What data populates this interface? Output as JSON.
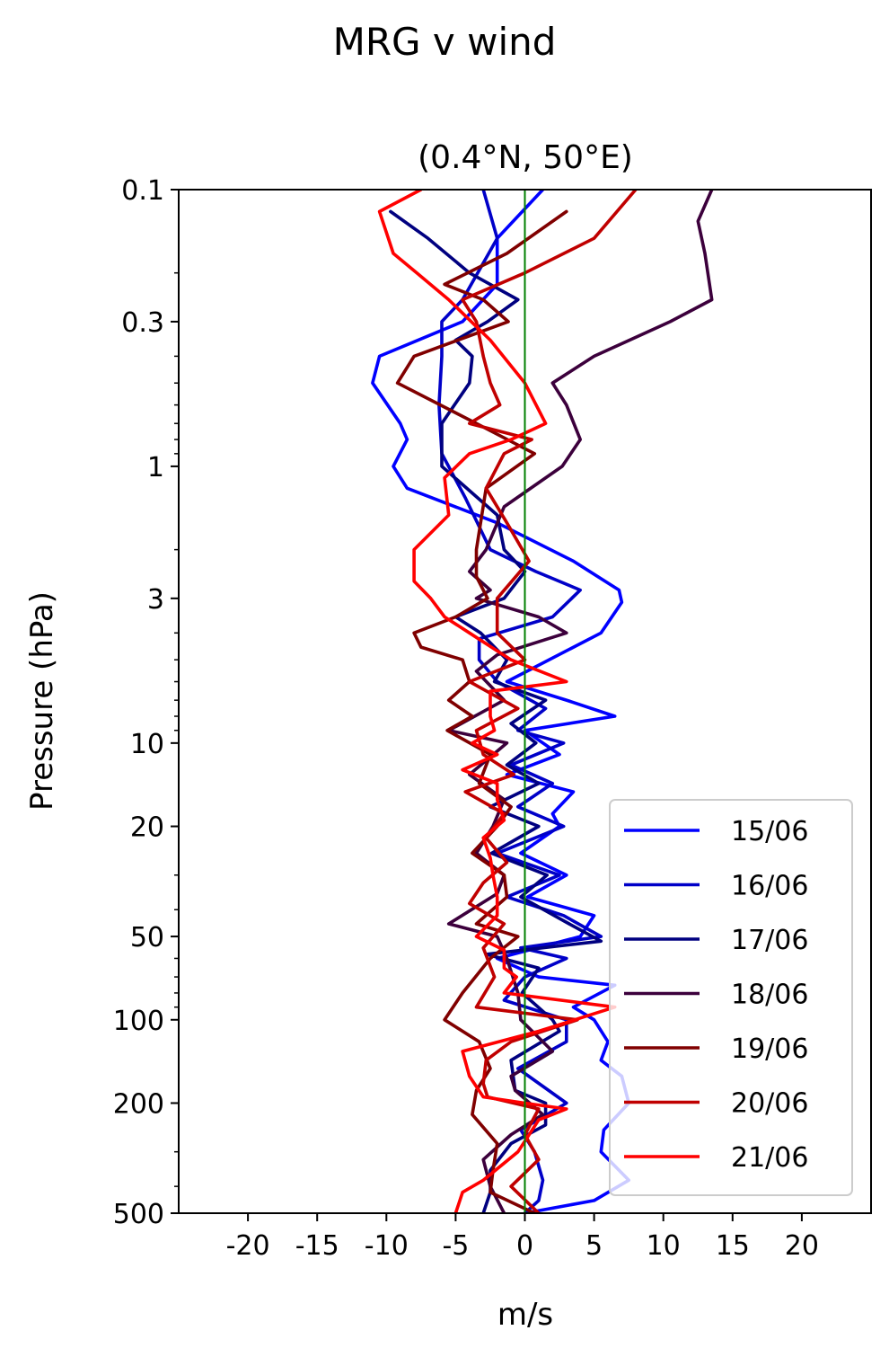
{
  "figure_title": "MRG v wind",
  "chart_data": {
    "type": "line",
    "title": "(0.4°N, 50°E)",
    "xlabel": "m/s",
    "ylabel": "Pressure (hPa)",
    "xlim": [
      -25,
      25
    ],
    "ylim": [
      500,
      0.1
    ],
    "y_scale": "log",
    "x_ticks": [
      -20,
      -15,
      -10,
      -5,
      0,
      5,
      10,
      15,
      20
    ],
    "x_tick_labels": [
      "-20",
      "-15",
      "-10",
      "-5",
      "0",
      "5",
      "10",
      "15",
      "20"
    ],
    "y_ticks": [
      0.1,
      0.3,
      1,
      3,
      10,
      20,
      50,
      100,
      200,
      500
    ],
    "y_tick_labels": [
      "0.1",
      "0.3",
      "1",
      "3",
      "10",
      "20",
      "50",
      "100",
      "200",
      "500"
    ],
    "reference_line": {
      "x": 0,
      "color": "#008000"
    },
    "legend": {
      "placement": "bottom-right"
    },
    "series": [
      {
        "name": "15/06",
        "color": "#0000ff",
        "points": [
          [
            1.3,
            0.1
          ],
          [
            -2,
            0.15
          ],
          [
            -2,
            0.22
          ],
          [
            -4.5,
            0.3
          ],
          [
            -10.5,
            0.4
          ],
          [
            -11,
            0.5
          ],
          [
            -9,
            0.7
          ],
          [
            -8.5,
            0.8
          ],
          [
            -9.5,
            1
          ],
          [
            -8.5,
            1.2
          ],
          [
            -2,
            1.6
          ],
          [
            3.5,
            2.2
          ],
          [
            6.8,
            2.8
          ],
          [
            7,
            3.1
          ],
          [
            5.5,
            4
          ],
          [
            -1.3,
            6
          ],
          [
            3,
            7
          ],
          [
            6.5,
            8
          ],
          [
            0,
            9
          ],
          [
            2.5,
            11
          ],
          [
            -1.3,
            13
          ],
          [
            3.5,
            15
          ],
          [
            2,
            18
          ],
          [
            2.5,
            20
          ],
          [
            -0.3,
            25
          ],
          [
            3,
            30
          ],
          [
            0.2,
            36
          ],
          [
            5,
            42
          ],
          [
            4,
            50
          ],
          [
            -2,
            60
          ],
          [
            1,
            70
          ],
          [
            6.5,
            75
          ],
          [
            3.5,
            90
          ],
          [
            5,
            100
          ],
          [
            6,
            120
          ],
          [
            5.5,
            140
          ],
          [
            7,
            160
          ],
          [
            7.5,
            200
          ],
          [
            5.7,
            250
          ],
          [
            5.5,
            300
          ],
          [
            7.5,
            380
          ],
          [
            5,
            450
          ],
          [
            0,
            500
          ]
        ]
      },
      {
        "name": "16/06",
        "color": "#0000c8",
        "points": [
          [
            -3,
            0.1
          ],
          [
            -2,
            0.15
          ],
          [
            -4.5,
            0.25
          ],
          [
            -6,
            0.3
          ],
          [
            -6,
            0.4
          ],
          [
            -6.2,
            0.6
          ],
          [
            -6,
            0.9
          ],
          [
            -4.3,
            1.3
          ],
          [
            -2.5,
            2
          ],
          [
            0.8,
            2.4
          ],
          [
            4,
            2.8
          ],
          [
            2,
            3.5
          ],
          [
            -3.3,
            4.2
          ],
          [
            -3.3,
            5
          ],
          [
            -2,
            6
          ],
          [
            1.5,
            7.5
          ],
          [
            -0.5,
            9
          ],
          [
            2.8,
            10
          ],
          [
            -1,
            12
          ],
          [
            2,
            14
          ],
          [
            -0.5,
            17
          ],
          [
            2.8,
            20
          ],
          [
            -2,
            25
          ],
          [
            2.5,
            30
          ],
          [
            -1.3,
            36
          ],
          [
            2.8,
            42
          ],
          [
            5.5,
            50
          ],
          [
            -0.3,
            55
          ],
          [
            3,
            60
          ],
          [
            0,
            70
          ],
          [
            -1.5,
            85
          ],
          [
            3,
            100
          ],
          [
            3,
            120
          ],
          [
            -0.5,
            150
          ],
          [
            3,
            200
          ],
          [
            -0.3,
            250
          ],
          [
            0.7,
            300
          ],
          [
            1.3,
            380
          ],
          [
            1,
            450
          ],
          [
            0,
            500
          ]
        ]
      },
      {
        "name": "17/06",
        "color": "#000080",
        "points": [
          [
            -9.7,
            0.12
          ],
          [
            -7,
            0.15
          ],
          [
            -4,
            0.2
          ],
          [
            -0.5,
            0.25
          ],
          [
            -2.7,
            0.3
          ],
          [
            -5,
            0.35
          ],
          [
            -3.8,
            0.4
          ],
          [
            -4,
            0.5
          ],
          [
            -6,
            0.7
          ],
          [
            -6,
            1
          ],
          [
            -2,
            1.5
          ],
          [
            -1.5,
            2
          ],
          [
            0,
            2.4
          ],
          [
            -1.5,
            3
          ],
          [
            -5,
            3.5
          ],
          [
            -3.2,
            4
          ],
          [
            -1.3,
            5
          ],
          [
            -2.2,
            6
          ],
          [
            1.5,
            7
          ],
          [
            -1,
            8.5
          ],
          [
            0.8,
            10
          ],
          [
            -1.3,
            12
          ],
          [
            1,
            14
          ],
          [
            -2.5,
            17
          ],
          [
            1,
            20
          ],
          [
            -2.4,
            25
          ],
          [
            1.6,
            30
          ],
          [
            -0.3,
            36
          ],
          [
            3.2,
            45
          ],
          [
            5.5,
            52
          ],
          [
            -2.8,
            58
          ],
          [
            1,
            65
          ],
          [
            -0.2,
            80
          ],
          [
            2,
            100
          ],
          [
            2.5,
            110
          ],
          [
            -1,
            140
          ],
          [
            -0.7,
            180
          ],
          [
            1.5,
            200
          ],
          [
            1.5,
            240
          ],
          [
            -1,
            280
          ],
          [
            -2.5,
            350
          ],
          [
            -2.5,
            420
          ],
          [
            -3,
            500
          ]
        ]
      },
      {
        "name": "18/06",
        "color": "#3c003c",
        "points": [
          [
            13.5,
            0.1
          ],
          [
            12.5,
            0.13
          ],
          [
            13,
            0.17
          ],
          [
            13.5,
            0.25
          ],
          [
            10.5,
            0.3
          ],
          [
            5,
            0.4
          ],
          [
            2,
            0.5
          ],
          [
            3,
            0.6
          ],
          [
            4,
            0.8
          ],
          [
            2.7,
            1
          ],
          [
            -1.5,
            1.4
          ],
          [
            -2.8,
            2
          ],
          [
            -4,
            2.4
          ],
          [
            -2.5,
            2.8
          ],
          [
            -3.5,
            3
          ],
          [
            1,
            3.5
          ],
          [
            3,
            4
          ],
          [
            -2,
            4.8
          ],
          [
            -3.5,
            5.5
          ],
          [
            -1.5,
            7
          ],
          [
            -5.5,
            9
          ],
          [
            -1.3,
            10
          ],
          [
            -4,
            13
          ],
          [
            -1.5,
            16
          ],
          [
            -2.3,
            20
          ],
          [
            -3.5,
            25
          ],
          [
            -1.5,
            30
          ],
          [
            -2,
            35
          ],
          [
            -5.5,
            45
          ],
          [
            -2,
            50
          ],
          [
            -1.3,
            60
          ],
          [
            -0.5,
            80
          ],
          [
            -0.3,
            100
          ],
          [
            2,
            130
          ],
          [
            -1,
            160
          ],
          [
            -0.7,
            180
          ],
          [
            1.3,
            220
          ],
          [
            -1,
            260
          ],
          [
            -3,
            320
          ],
          [
            -2.5,
            400
          ],
          [
            -1.5,
            500
          ]
        ]
      },
      {
        "name": "19/06",
        "color": "#800000",
        "points": [
          [
            3,
            0.12
          ],
          [
            -1.3,
            0.17
          ],
          [
            -5.8,
            0.22
          ],
          [
            -3,
            0.25
          ],
          [
            -1.2,
            0.3
          ],
          [
            -8,
            0.4
          ],
          [
            -9.2,
            0.5
          ],
          [
            -3.5,
            0.7
          ],
          [
            0.7,
            0.9
          ],
          [
            -2.8,
            1.2
          ],
          [
            -3.5,
            2
          ],
          [
            -3.5,
            2.5
          ],
          [
            -2.7,
            3
          ],
          [
            -5,
            3.5
          ],
          [
            -8,
            4
          ],
          [
            -7.5,
            4.5
          ],
          [
            -4.5,
            5
          ],
          [
            -4,
            6
          ],
          [
            -5.5,
            7
          ],
          [
            -3.8,
            8
          ],
          [
            -5.6,
            9
          ],
          [
            -2.5,
            11
          ],
          [
            -3.3,
            14
          ],
          [
            -1,
            17
          ],
          [
            -2,
            20
          ],
          [
            -3.8,
            25
          ],
          [
            -1.5,
            30
          ],
          [
            -1.3,
            36
          ],
          [
            -3.5,
            45
          ],
          [
            -0.5,
            50
          ],
          [
            -2.5,
            60
          ],
          [
            -4.5,
            80
          ],
          [
            -5.8,
            100
          ],
          [
            -3.3,
            120
          ],
          [
            -2.5,
            150
          ],
          [
            -3.5,
            180
          ],
          [
            -3.8,
            220
          ],
          [
            -2,
            280
          ],
          [
            -2.3,
            350
          ],
          [
            -2.5,
            420
          ],
          [
            0.7,
            500
          ]
        ]
      },
      {
        "name": "20/06",
        "color": "#c00000",
        "points": [
          [
            8,
            0.1
          ],
          [
            5,
            0.15
          ],
          [
            0,
            0.2
          ],
          [
            -4.5,
            0.25
          ],
          [
            -3.5,
            0.3
          ],
          [
            -3,
            0.4
          ],
          [
            -2.5,
            0.5
          ],
          [
            -1.8,
            0.6
          ],
          [
            -4,
            0.7
          ],
          [
            0.5,
            0.8
          ],
          [
            -1.5,
            0.9
          ],
          [
            -2.8,
            1.2
          ],
          [
            -1.3,
            1.6
          ],
          [
            0.3,
            2.2
          ],
          [
            -2,
            3
          ],
          [
            -2,
            4
          ],
          [
            0,
            5
          ],
          [
            -4,
            6
          ],
          [
            -0.5,
            7.5
          ],
          [
            -3.5,
            9
          ],
          [
            -3,
            11
          ],
          [
            -0.8,
            13
          ],
          [
            -4.3,
            15
          ],
          [
            -1.5,
            18
          ],
          [
            -2.8,
            22
          ],
          [
            -1.3,
            27
          ],
          [
            -3,
            32
          ],
          [
            -4,
            38
          ],
          [
            -1.5,
            45
          ],
          [
            -3,
            55
          ],
          [
            -2.2,
            70
          ],
          [
            -3.5,
            90
          ],
          [
            3.8,
            100
          ],
          [
            -1,
            120
          ],
          [
            -2.8,
            140
          ],
          [
            -3,
            170
          ],
          [
            -2.7,
            190
          ],
          [
            1,
            210
          ],
          [
            0,
            260
          ],
          [
            1,
            320
          ],
          [
            -1,
            400
          ],
          [
            1,
            500
          ]
        ]
      },
      {
        "name": "21/06",
        "color": "#ff0000",
        "points": [
          [
            -7.5,
            0.1
          ],
          [
            -10.5,
            0.12
          ],
          [
            -9.5,
            0.17
          ],
          [
            -7.8,
            0.2
          ],
          [
            -5.5,
            0.25
          ],
          [
            -2.5,
            0.35
          ],
          [
            0,
            0.5
          ],
          [
            1.5,
            0.7
          ],
          [
            -1,
            0.8
          ],
          [
            -4,
            0.9
          ],
          [
            -5.8,
            1.1
          ],
          [
            -5.5,
            1.5
          ],
          [
            -8,
            2
          ],
          [
            -8,
            2.6
          ],
          [
            -6.8,
            3
          ],
          [
            -5.8,
            3.5
          ],
          [
            -4,
            4
          ],
          [
            -1,
            5
          ],
          [
            3,
            6
          ],
          [
            -2.5,
            6.5
          ],
          [
            -2.5,
            8
          ],
          [
            -2.2,
            9
          ],
          [
            -3.8,
            10
          ],
          [
            -2,
            11
          ],
          [
            -4.5,
            12.5
          ],
          [
            -2,
            14
          ],
          [
            -2,
            16
          ],
          [
            -1.5,
            19
          ],
          [
            -3,
            22
          ],
          [
            -2.5,
            26
          ],
          [
            -2.3,
            30
          ],
          [
            -2,
            36
          ],
          [
            -2,
            42
          ],
          [
            -3.5,
            50
          ],
          [
            -1.5,
            56
          ],
          [
            -1.5,
            60
          ],
          [
            -1.5,
            65
          ],
          [
            -0.6,
            70
          ],
          [
            -1.5,
            80
          ],
          [
            6.5,
            90
          ],
          [
            1,
            110
          ],
          [
            -4.5,
            130
          ],
          [
            -4,
            160
          ],
          [
            -3,
            190
          ],
          [
            0,
            200
          ],
          [
            3,
            210
          ],
          [
            1,
            230
          ],
          [
            -0.5,
            300
          ],
          [
            -3,
            380
          ],
          [
            -4.5,
            420
          ],
          [
            -5,
            500
          ]
        ]
      }
    ]
  }
}
